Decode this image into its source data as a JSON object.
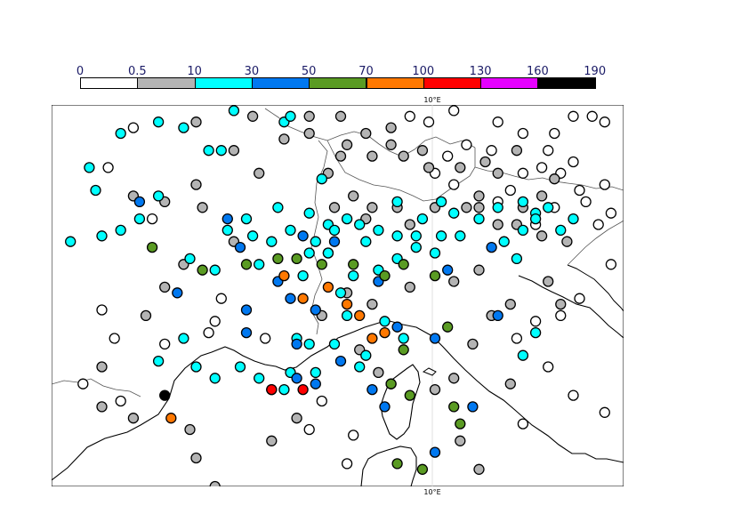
{
  "legend": {
    "labels": [
      "0",
      "0.5",
      "10",
      "30",
      "50",
      "70",
      "100",
      "130",
      "160",
      "190"
    ],
    "colors": [
      "#ffffff",
      "#b4b4b4",
      "#00ffff",
      "#0078f0",
      "#5a9b23",
      "#ff7800",
      "#ff0000",
      "#e600ff",
      "#000000"
    ]
  },
  "map": {
    "meridian_label_top": "10°E",
    "meridian_label_bottom": "10°E",
    "border_color": "#000000",
    "coast_color": "#000000"
  },
  "chart_data": {
    "type": "scatter",
    "title": "",
    "xlabel": "",
    "ylabel": "",
    "grid": true,
    "legend_placement": "top",
    "bins": [
      "0-0.5",
      "0.5-10",
      "10-30",
      "30-50",
      "50-70",
      "70-100",
      "100-130",
      "130-160",
      "160-190"
    ],
    "series": [
      {
        "bin": 0,
        "points": [
          [
            5.8,
            47.3
          ],
          [
            5.4,
            46.6
          ],
          [
            6.1,
            45.7
          ],
          [
            5.3,
            44.1
          ],
          [
            5.5,
            43.6
          ],
          [
            5.0,
            42.8
          ],
          [
            5.6,
            42.5
          ],
          [
            6.3,
            43.5
          ],
          [
            7.9,
            43.6
          ],
          [
            7.2,
            44.3
          ],
          [
            7.1,
            43.9
          ],
          [
            7.0,
            43.7
          ],
          [
            8.0,
            42.7
          ],
          [
            8.8,
            42.5
          ],
          [
            8.6,
            42.0
          ],
          [
            9.3,
            41.9
          ],
          [
            9.2,
            41.4
          ],
          [
            10.2,
            47.5
          ],
          [
            10.5,
            47.4
          ],
          [
            10.9,
            47.6
          ],
          [
            11.6,
            47.4
          ],
          [
            11.5,
            46.9
          ],
          [
            11.1,
            47.0
          ],
          [
            10.8,
            46.8
          ],
          [
            12.0,
            47.2
          ],
          [
            12.4,
            46.9
          ],
          [
            12.3,
            46.6
          ],
          [
            12.0,
            46.5
          ],
          [
            11.8,
            46.2
          ],
          [
            12.6,
            46.5
          ],
          [
            12.9,
            46.2
          ],
          [
            12.8,
            46.7
          ],
          [
            13.3,
            46.3
          ],
          [
            13.0,
            46.0
          ],
          [
            12.5,
            45.9
          ],
          [
            12.2,
            45.6
          ],
          [
            11.6,
            46.0
          ],
          [
            10.9,
            46.3
          ],
          [
            10.6,
            46.5
          ],
          [
            13.4,
            45.8
          ],
          [
            13.2,
            45.6
          ],
          [
            13.4,
            44.9
          ],
          [
            12.9,
            44.3
          ],
          [
            12.6,
            44.0
          ],
          [
            12.2,
            43.9
          ],
          [
            11.9,
            43.6
          ],
          [
            12.4,
            43.1
          ],
          [
            12.8,
            42.6
          ],
          [
            13.3,
            42.3
          ],
          [
            12.0,
            42.1
          ],
          [
            13.1,
            47.5
          ],
          [
            13.3,
            47.4
          ],
          [
            12.8,
            47.5
          ],
          [
            12.5,
            47.2
          ]
        ]
      },
      {
        "bin": 1,
        "points": [
          [
            6.8,
            47.4
          ],
          [
            7.7,
            47.5
          ],
          [
            8.2,
            47.1
          ],
          [
            8.6,
            47.5
          ],
          [
            8.6,
            47.2
          ],
          [
            9.1,
            47.5
          ],
          [
            9.5,
            47.2
          ],
          [
            9.9,
            47.3
          ],
          [
            10.4,
            46.9
          ],
          [
            11.0,
            46.6
          ],
          [
            11.4,
            46.7
          ],
          [
            11.9,
            46.9
          ],
          [
            7.4,
            46.9
          ],
          [
            7.8,
            46.5
          ],
          [
            6.8,
            46.3
          ],
          [
            5.8,
            46.1
          ],
          [
            6.3,
            46.0
          ],
          [
            6.9,
            45.9
          ],
          [
            7.4,
            45.3
          ],
          [
            6.6,
            44.9
          ],
          [
            6.3,
            44.5
          ],
          [
            6.0,
            44.0
          ],
          [
            5.3,
            43.1
          ],
          [
            5.3,
            42.4
          ],
          [
            5.8,
            42.2
          ],
          [
            6.7,
            42.0
          ],
          [
            6.8,
            41.5
          ],
          [
            7.1,
            41.0
          ],
          [
            8.0,
            41.8
          ],
          [
            8.4,
            42.2
          ],
          [
            8.8,
            44.0
          ],
          [
            9.6,
            44.2
          ],
          [
            9.2,
            44.4
          ],
          [
            9.4,
            43.4
          ],
          [
            10.2,
            44.5
          ],
          [
            11.5,
            44.0
          ],
          [
            10.9,
            44.6
          ],
          [
            11.3,
            44.8
          ],
          [
            11.8,
            44.2
          ],
          [
            11.6,
            45.6
          ],
          [
            12.4,
            44.6
          ],
          [
            12.6,
            44.2
          ],
          [
            12.3,
            45.4
          ],
          [
            11.1,
            45.9
          ],
          [
            12.7,
            45.3
          ],
          [
            11.3,
            45.9
          ],
          [
            10.2,
            45.6
          ],
          [
            11.6,
            46.5
          ],
          [
            12.0,
            45.9
          ],
          [
            11.9,
            45.6
          ],
          [
            12.3,
            46.1
          ],
          [
            12.5,
            46.4
          ],
          [
            10.6,
            45.9
          ],
          [
            11.3,
            46.1
          ],
          [
            9.9,
            47.0
          ],
          [
            10.1,
            46.8
          ],
          [
            10.5,
            46.6
          ],
          [
            9.6,
            46.8
          ],
          [
            9.1,
            46.8
          ],
          [
            9.3,
            46.1
          ],
          [
            9.5,
            45.7
          ],
          [
            9.2,
            47.0
          ],
          [
            8.9,
            46.5
          ],
          [
            9.0,
            45.9
          ],
          [
            9.6,
            45.9
          ],
          [
            10.0,
            45.9
          ],
          [
            8.9,
            45.1
          ],
          [
            9.7,
            43.0
          ],
          [
            9.9,
            42.8
          ],
          [
            11.0,
            41.8
          ],
          [
            11.3,
            41.3
          ],
          [
            11.8,
            40.9
          ],
          [
            10.6,
            42.7
          ],
          [
            10.9,
            42.9
          ],
          [
            11.2,
            43.5
          ],
          [
            11.8,
            42.8
          ]
        ]
      },
      {
        "bin": 2,
        "points": [
          [
            5.6,
            47.2
          ],
          [
            6.6,
            47.3
          ],
          [
            7.4,
            47.6
          ],
          [
            8.2,
            47.4
          ],
          [
            8.3,
            47.5
          ],
          [
            6.2,
            47.4
          ],
          [
            7.0,
            46.9
          ],
          [
            7.2,
            46.9
          ],
          [
            5.1,
            46.6
          ],
          [
            5.2,
            46.2
          ],
          [
            6.2,
            46.1
          ],
          [
            5.9,
            45.7
          ],
          [
            5.6,
            45.5
          ],
          [
            4.8,
            45.3
          ],
          [
            5.3,
            45.4
          ],
          [
            6.7,
            45.0
          ],
          [
            7.1,
            44.8
          ],
          [
            7.6,
            45.7
          ],
          [
            8.1,
            45.9
          ],
          [
            7.3,
            45.5
          ],
          [
            7.8,
            44.9
          ],
          [
            8.8,
            46.4
          ],
          [
            8.6,
            45.8
          ],
          [
            8.9,
            45.6
          ],
          [
            9.5,
            45.3
          ],
          [
            10.4,
            45.7
          ],
          [
            10.7,
            46.0
          ],
          [
            10.0,
            46.0
          ],
          [
            10.9,
            45.8
          ],
          [
            11.3,
            45.7
          ],
          [
            11.6,
            45.9
          ],
          [
            12.0,
            45.5
          ],
          [
            12.4,
            45.9
          ],
          [
            12.6,
            45.5
          ],
          [
            12.8,
            45.7
          ],
          [
            12.2,
            45.8
          ],
          [
            11.7,
            45.3
          ],
          [
            11.9,
            45.0
          ],
          [
            12.2,
            45.7
          ],
          [
            12.0,
            46.0
          ],
          [
            8.5,
            44.7
          ],
          [
            9.1,
            44.4
          ],
          [
            9.2,
            44.0
          ],
          [
            8.6,
            43.5
          ],
          [
            8.4,
            43.6
          ],
          [
            8.3,
            43.0
          ],
          [
            8.7,
            43.0
          ],
          [
            7.5,
            43.1
          ],
          [
            7.1,
            42.9
          ],
          [
            6.8,
            43.1
          ],
          [
            6.6,
            43.6
          ],
          [
            6.2,
            43.2
          ],
          [
            7.8,
            42.9
          ],
          [
            8.2,
            42.7
          ],
          [
            9.0,
            43.5
          ],
          [
            10.1,
            43.6
          ],
          [
            9.5,
            43.3
          ],
          [
            9.4,
            43.1
          ],
          [
            9.8,
            43.9
          ],
          [
            12.0,
            43.3
          ],
          [
            12.2,
            43.7
          ],
          [
            7.7,
            45.4
          ],
          [
            8.0,
            45.3
          ],
          [
            8.3,
            45.5
          ],
          [
            8.6,
            45.1
          ],
          [
            8.9,
            45.1
          ],
          [
            9.3,
            44.7
          ],
          [
            9.7,
            44.8
          ],
          [
            10.0,
            45.0
          ],
          [
            10.3,
            45.2
          ],
          [
            10.6,
            45.1
          ],
          [
            8.7,
            45.3
          ],
          [
            9.0,
            45.5
          ],
          [
            9.2,
            45.7
          ],
          [
            9.4,
            45.6
          ],
          [
            9.7,
            45.5
          ],
          [
            10.0,
            45.4
          ],
          [
            10.3,
            45.4
          ],
          [
            10.7,
            45.4
          ],
          [
            11.0,
            45.4
          ]
        ]
      },
      {
        "bin": 3,
        "points": [
          [
            5.9,
            46.0
          ],
          [
            7.3,
            45.7
          ],
          [
            8.1,
            44.6
          ],
          [
            8.3,
            44.3
          ],
          [
            7.6,
            44.1
          ],
          [
            6.5,
            44.4
          ],
          [
            7.6,
            43.7
          ],
          [
            8.7,
            44.1
          ],
          [
            8.4,
            43.5
          ],
          [
            8.4,
            42.9
          ],
          [
            8.7,
            42.8
          ],
          [
            9.1,
            43.2
          ],
          [
            9.7,
            44.6
          ],
          [
            9.6,
            42.7
          ],
          [
            9.8,
            42.4
          ],
          [
            11.2,
            42.4
          ],
          [
            10.6,
            41.6
          ],
          [
            10.0,
            43.8
          ],
          [
            10.6,
            43.6
          ],
          [
            10.8,
            44.8
          ],
          [
            11.6,
            44.0
          ],
          [
            8.5,
            45.4
          ],
          [
            9.0,
            45.3
          ],
          [
            7.5,
            45.2
          ],
          [
            11.5,
            45.2
          ]
        ]
      },
      {
        "bin": 4,
        "points": [
          [
            6.1,
            45.2
          ],
          [
            6.9,
            44.8
          ],
          [
            7.6,
            44.9
          ],
          [
            8.1,
            45.0
          ],
          [
            8.4,
            45.0
          ],
          [
            9.3,
            44.9
          ],
          [
            9.8,
            44.7
          ],
          [
            10.1,
            44.9
          ],
          [
            10.6,
            44.7
          ],
          [
            10.8,
            43.8
          ],
          [
            10.1,
            43.4
          ],
          [
            9.9,
            42.8
          ],
          [
            10.2,
            42.6
          ],
          [
            10.0,
            41.4
          ],
          [
            10.4,
            41.3
          ],
          [
            10.9,
            42.4
          ],
          [
            11.0,
            42.1
          ],
          [
            8.8,
            44.9
          ]
        ]
      },
      {
        "bin": 5,
        "points": [
          [
            8.2,
            44.7
          ],
          [
            8.5,
            44.3
          ],
          [
            8.9,
            44.5
          ],
          [
            9.2,
            44.2
          ],
          [
            9.4,
            44.0
          ],
          [
            9.6,
            43.6
          ],
          [
            9.8,
            43.7
          ],
          [
            6.4,
            42.2
          ]
        ]
      },
      {
        "bin": 6,
        "points": [
          [
            8.0,
            42.7
          ],
          [
            8.5,
            42.7
          ]
        ]
      },
      {
        "bin": 7,
        "points": []
      },
      {
        "bin": 8,
        "points": [
          [
            6.3,
            42.6
          ]
        ]
      }
    ]
  }
}
